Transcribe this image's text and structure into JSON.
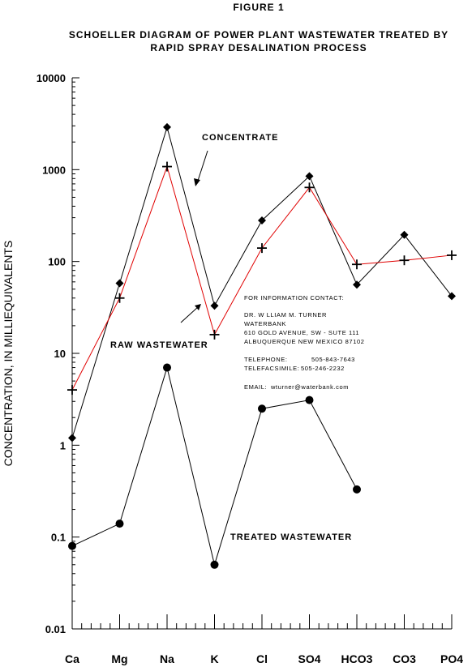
{
  "figure_label": "FIGURE 1",
  "chart_data": {
    "type": "line",
    "title": "SCHOELLER DIAGRAM OF POWER PLANT WASTEWATER TREATED BY",
    "subtitle": "RAPID SPRAY DESALINATION PROCESS",
    "ylabel": "CONCENTRATION, IN MILLIEQUIVALENTS",
    "xlabel": "",
    "yscale": "log",
    "ylim": [
      0.01,
      10000
    ],
    "yticks": [
      "0.01",
      "0.1",
      "1",
      "10",
      "100",
      "1000",
      "10000"
    ],
    "categories": [
      "Ca",
      "Mg",
      "Na",
      "K",
      "Cl",
      "SO4",
      "HCO3",
      "CO3",
      "PO4"
    ],
    "grid": false,
    "series": [
      {
        "name": "CONCENTRATE",
        "marker": "diamond",
        "color": "#000000",
        "values": [
          1.2,
          58,
          2900,
          33,
          280,
          850,
          56,
          195,
          42
        ]
      },
      {
        "name": "RAW WASTEWATER",
        "marker": "plus",
        "color": "#e00000",
        "values": [
          4,
          40,
          1080,
          16,
          140,
          640,
          93,
          103,
          117
        ]
      },
      {
        "name": "TREATED WASTEWATER",
        "marker": "circle",
        "color": "#000000",
        "values": [
          0.08,
          0.14,
          7,
          0.05,
          2.5,
          3.1,
          0.33,
          null,
          null
        ]
      }
    ]
  },
  "contact": {
    "heading": "FOR INFORMATION CONTACT:",
    "name": "DR. W LLIAM M. TURNER",
    "org": "WATERBANK",
    "address1": "610 GOLD AVENUE, SW - SUTE 111",
    "address2": "ALBUQUERQUE  NEW MEXICO 87102",
    "telephone_label": "TELEPHONE:",
    "telephone": "505-843-7643",
    "fax_label": "TELEFACSIMILE:",
    "fax": "505-246-2232",
    "email_label": "EMAIL:",
    "email": "wturner@waterbank.com"
  }
}
